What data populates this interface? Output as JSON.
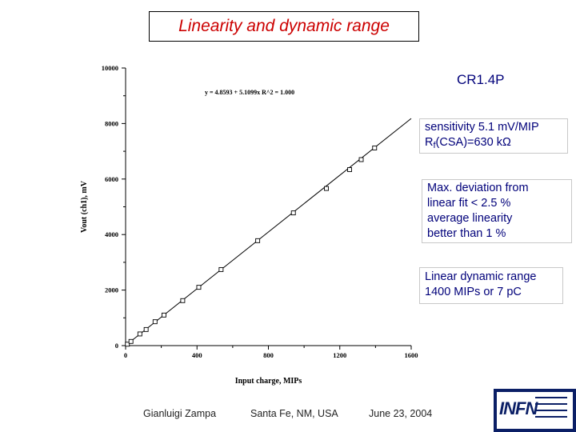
{
  "slide": {
    "title": "Linearity and dynamic range",
    "series_label": "CR1.4P",
    "notes": {
      "sensitivity": "sensitivity 5.1 mV/MIP",
      "rf_prefix": "R",
      "rf_sub": "f",
      "rf_value": "(CSA)=630 kΩ",
      "deviation": [
        "Max. deviation from",
        "linear fit < 2.5 %",
        "average linearity",
        "better than 1 %"
      ],
      "dynamic_range": [
        "Linear dynamic range",
        "1400 MIPs or 7 pC"
      ]
    },
    "footer": {
      "author": "Gianluigi Zampa",
      "location": "Santa Fe, NM, USA",
      "date": "June 23, 2004"
    },
    "logo_text": "INFN"
  },
  "colors": {
    "title": "#cc0000",
    "notes": "#00007a",
    "logo": "#0b1f66"
  },
  "chart_data": {
    "type": "scatter",
    "title": "",
    "xlabel": "Input charge, MIPs",
    "ylabel": "Vout (ch1), mV",
    "xlim": [
      0,
      1600
    ],
    "ylim": [
      0,
      10000
    ],
    "xticks": [
      0,
      400,
      800,
      1200,
      1600
    ],
    "yticks": [
      0,
      2000,
      4000,
      6000,
      8000,
      10000
    ],
    "grid": false,
    "fit": {
      "equation": "y = 4.8593 + 5.1099x   R^2 = 1.000",
      "intercept": 4.8593,
      "slope": 5.1099,
      "x_range": [
        0,
        1600
      ]
    },
    "series": [
      {
        "x": [
          10,
          30,
          80,
          115,
          165,
          215,
          320,
          410,
          535,
          740,
          940,
          1125,
          1255,
          1320,
          1395
        ],
        "y": [
          50,
          150,
          420,
          580,
          860,
          1100,
          1620,
          2100,
          2740,
          3780,
          4780,
          5660,
          6340,
          6700,
          7120
        ]
      }
    ]
  }
}
